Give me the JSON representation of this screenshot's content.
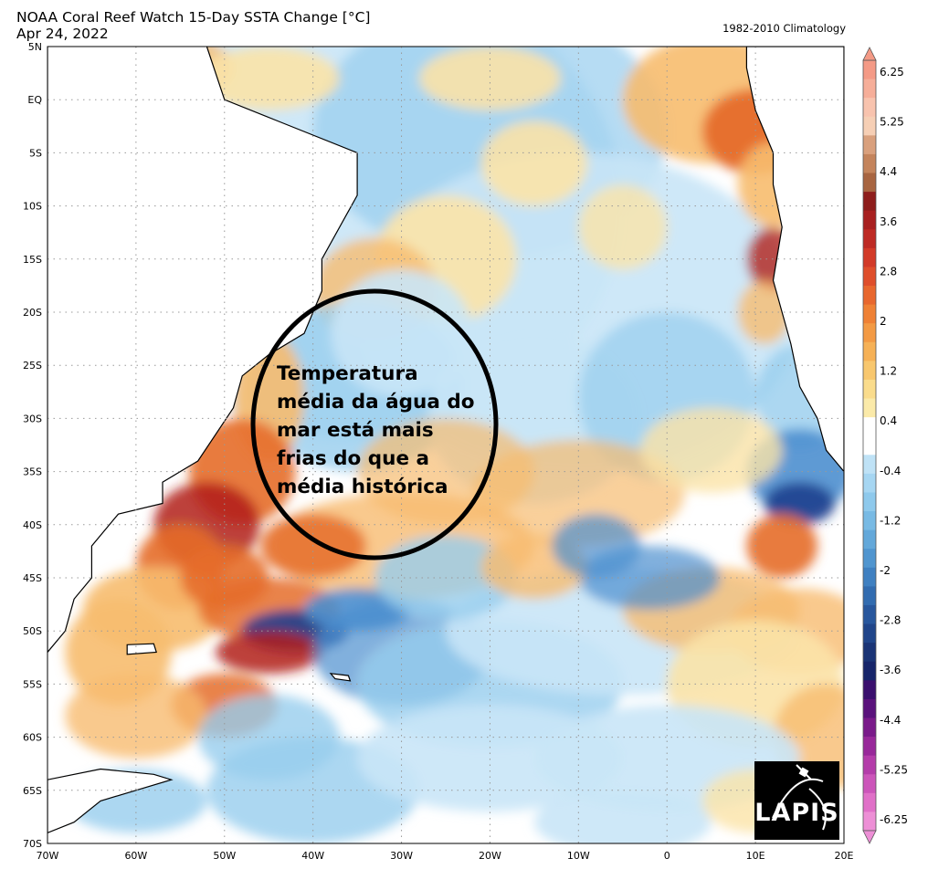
{
  "header": {
    "title": "NOAA Coral Reef Watch 15-Day SSTA Change [°C]",
    "date": "Apr 24, 2022",
    "climatology": "1982-2010 Climatology"
  },
  "map": {
    "lat_labels": [
      "5N",
      "EQ",
      "5S",
      "10S",
      "15S",
      "20S",
      "25S",
      "30S",
      "35S",
      "40S",
      "45S",
      "50S",
      "55S",
      "60S",
      "65S",
      "70S"
    ],
    "lat_values": [
      5,
      0,
      -5,
      -10,
      -15,
      -20,
      -25,
      -30,
      -35,
      -40,
      -45,
      -50,
      -55,
      -60,
      -65,
      -70
    ],
    "lon_labels": [
      "70W",
      "60W",
      "50W",
      "40W",
      "30W",
      "20W",
      "10W",
      "0",
      "10E",
      "20E"
    ],
    "lon_values": [
      -70,
      -60,
      -50,
      -40,
      -30,
      -20,
      -10,
      0,
      10,
      20
    ],
    "lat_range": [
      -70,
      5
    ],
    "lon_range": [
      -70,
      20
    ],
    "gridlines": true,
    "colors": {
      "warm_strong": "#b11f1a",
      "warm_mid": "#e56d2a",
      "warm_light": "#f7bc6f",
      "warm_pale": "#fbe3a8",
      "cool_pale": "#c9e6f7",
      "cool_light": "#97cdee",
      "cool_mid": "#4c8fcf",
      "cool_strong": "#1f3f8f",
      "land": "#ffffff",
      "coast": "#000000"
    }
  },
  "colorbar": {
    "labels": [
      "6.25",
      "5.25",
      "4.4",
      "3.6",
      "2.8",
      "2",
      "1.2",
      "0.4",
      "-0.4",
      "-1.2",
      "-2",
      "-2.8",
      "-3.6",
      "-4.4",
      "-5.25",
      "-6.25"
    ],
    "colors": [
      "#f49a86",
      "#f6ae99",
      "#f8c3ae",
      "#f6cfb5",
      "#d9a07d",
      "#c4845c",
      "#a86541",
      "#8e1d1c",
      "#a82020",
      "#be2a24",
      "#d23a28",
      "#df4e2b",
      "#e8672e",
      "#ef8135",
      "#f39a44",
      "#f6b156",
      "#f8c76e",
      "#fadc8c",
      "#fbeaa9",
      "#ffffff",
      "#ffffff",
      "#bfe2f6",
      "#a6d6f2",
      "#8ec9ec",
      "#78bae4",
      "#63a8da",
      "#5095cf",
      "#3f80c1",
      "#326cb0",
      "#28579d",
      "#20458a",
      "#1a3476",
      "#16256a",
      "#3a0f6e",
      "#5a127c",
      "#7a1a8a",
      "#98289a",
      "#b43caa",
      "#cc55ba",
      "#e070c8",
      "#ed8fd6"
    ]
  },
  "annotation": {
    "lines": [
      "Temperatura",
      "média da água do",
      "mar está mais",
      "frias do que a",
      "média histórica"
    ]
  },
  "logo": {
    "text": "LAPIS"
  }
}
